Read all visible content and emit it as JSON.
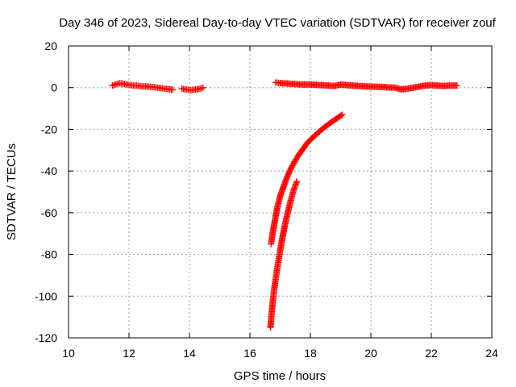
{
  "chart_data": {
    "type": "scatter",
    "title": "Day 346 of 2023, Sidereal Day-to-day VTEC variation (SDTVAR) for receiver zouf",
    "xlabel": "GPS time / hours",
    "ylabel": "SDTVAR / TECUs",
    "xlim": [
      10,
      24
    ],
    "ylim": [
      -120,
      20
    ],
    "x_ticks": [
      "10",
      "12",
      "14",
      "16",
      "18",
      "20",
      "22",
      "24"
    ],
    "y_ticks": [
      "20",
      "0",
      "-20",
      "-40",
      "-60",
      "-80",
      "-100",
      "-120"
    ],
    "grid": true,
    "marker": "+",
    "series_color": "#ff0000",
    "series": [
      {
        "segments": [
          {
            "x": [
              11.45,
              11.55,
              11.65,
              11.75,
              11.85,
              11.95,
              12.05,
              12.15,
              12.25,
              12.35,
              12.45,
              12.55,
              12.65,
              12.75,
              12.85,
              12.95,
              13.05,
              13.15,
              13.25,
              13.35,
              13.45
            ],
            "y": [
              1.0,
              1.5,
              2.0,
              2.0,
              1.8,
              1.5,
              1.2,
              1.0,
              1.0,
              0.8,
              0.6,
              0.6,
              0.5,
              0.3,
              0.2,
              0.0,
              -0.2,
              -0.4,
              -0.6,
              -0.8,
              -1.0
            ]
          },
          {
            "x": [
              13.75,
              13.85,
              13.95,
              14.05,
              14.15,
              14.25,
              14.35,
              14.45
            ],
            "y": [
              -0.5,
              -0.8,
              -1.0,
              -1.2,
              -1.0,
              -0.8,
              -0.5,
              0.0
            ]
          },
          {
            "x": [
              16.85,
              17.0,
              17.2,
              17.4,
              17.6,
              17.8,
              18.0,
              18.2,
              18.4,
              18.6,
              18.8,
              19.0,
              19.2,
              19.4,
              19.6,
              19.8,
              20.0,
              20.2,
              20.4,
              20.6,
              20.8,
              21.0,
              21.2,
              21.4,
              21.6,
              21.8,
              22.0,
              22.2,
              22.4,
              22.6,
              22.85
            ],
            "y": [
              2.5,
              2.2,
              2.0,
              1.8,
              1.6,
              1.5,
              1.5,
              1.3,
              1.2,
              1.0,
              0.8,
              1.5,
              1.2,
              1.0,
              0.8,
              0.6,
              0.5,
              0.4,
              0.3,
              0.1,
              0.0,
              -0.8,
              -0.5,
              0.0,
              0.5,
              1.0,
              1.2,
              1.0,
              0.8,
              1.0,
              1.0
            ]
          },
          {
            "x": [
              16.7,
              16.75,
              16.8,
              16.85,
              16.9,
              16.95,
              17.0,
              17.1,
              17.2,
              17.3,
              17.4,
              17.5,
              17.6,
              17.7,
              17.8,
              17.9,
              18.0,
              18.15,
              18.3,
              18.45,
              18.6,
              18.75,
              18.9,
              19.05
            ],
            "y": [
              -75,
              -70,
              -66,
              -62,
              -58,
              -55,
              -52,
              -48,
              -44,
              -40.5,
              -37.5,
              -35,
              -32.5,
              -30.5,
              -28.5,
              -26.5,
              -25,
              -23,
              -21,
              -19.2,
              -17.5,
              -16,
              -14.5,
              -13
            ]
          },
          {
            "x": [
              16.68,
              16.72,
              16.76,
              16.8,
              16.85,
              16.9,
              16.95,
              17.0,
              17.05,
              17.1,
              17.15,
              17.2,
              17.25,
              17.3,
              17.35,
              17.4,
              17.45,
              17.5,
              17.55
            ],
            "y": [
              -115,
              -108,
              -102,
              -97,
              -92,
              -87,
              -82.5,
              -78,
              -74,
              -70,
              -66.5,
              -63,
              -60,
              -57,
              -54,
              -51.5,
              -49,
              -47,
              -45
            ]
          }
        ]
      }
    ]
  }
}
